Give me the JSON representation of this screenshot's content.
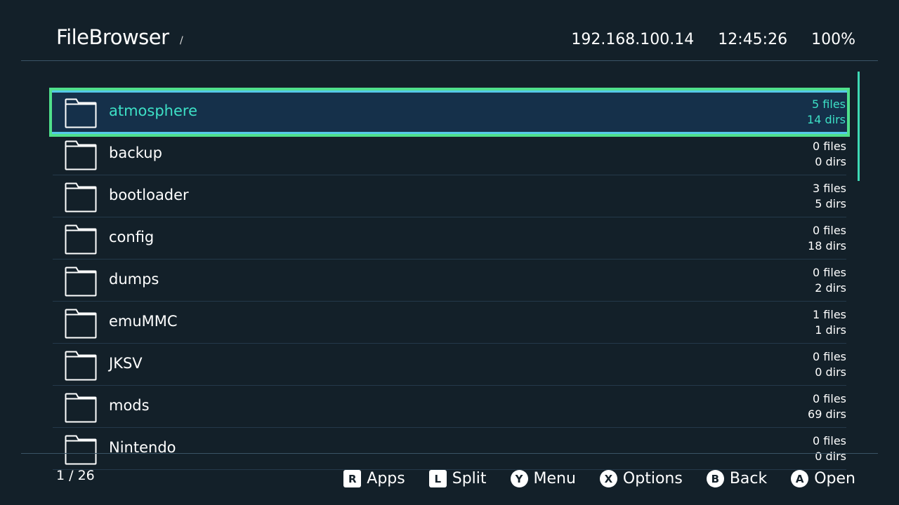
{
  "header": {
    "title": "FileBrowser",
    "path": "/",
    "ip": "192.168.100.14",
    "time": "12:45:26",
    "battery": "100%"
  },
  "list": {
    "items": [
      {
        "name": "atmosphere",
        "files": "5 files",
        "dirs": "14 dirs",
        "selected": true
      },
      {
        "name": "backup",
        "files": "0 files",
        "dirs": "0 dirs"
      },
      {
        "name": "bootloader",
        "files": "3 files",
        "dirs": "5 dirs"
      },
      {
        "name": "config",
        "files": "0 files",
        "dirs": "18 dirs"
      },
      {
        "name": "dumps",
        "files": "0 files",
        "dirs": "2 dirs"
      },
      {
        "name": "emuMMC",
        "files": "1 files",
        "dirs": "1 dirs"
      },
      {
        "name": "JKSV",
        "files": "0 files",
        "dirs": "0 dirs"
      },
      {
        "name": "mods",
        "files": "0 files",
        "dirs": "69 dirs"
      },
      {
        "name": "Nintendo",
        "files": "0 files",
        "dirs": "0 dirs"
      }
    ]
  },
  "footer": {
    "page": "1 / 26",
    "hints": [
      {
        "key": "R",
        "label": "Apps"
      },
      {
        "key": "L",
        "label": "Split"
      },
      {
        "key": "Y",
        "label": "Menu"
      },
      {
        "key": "X",
        "label": "Options"
      },
      {
        "key": "B",
        "label": "Back"
      },
      {
        "key": "A",
        "label": "Open"
      }
    ]
  },
  "colors": {
    "accent": "#3de0c6",
    "selection_border": "#4fe08c",
    "background": "#132029"
  }
}
